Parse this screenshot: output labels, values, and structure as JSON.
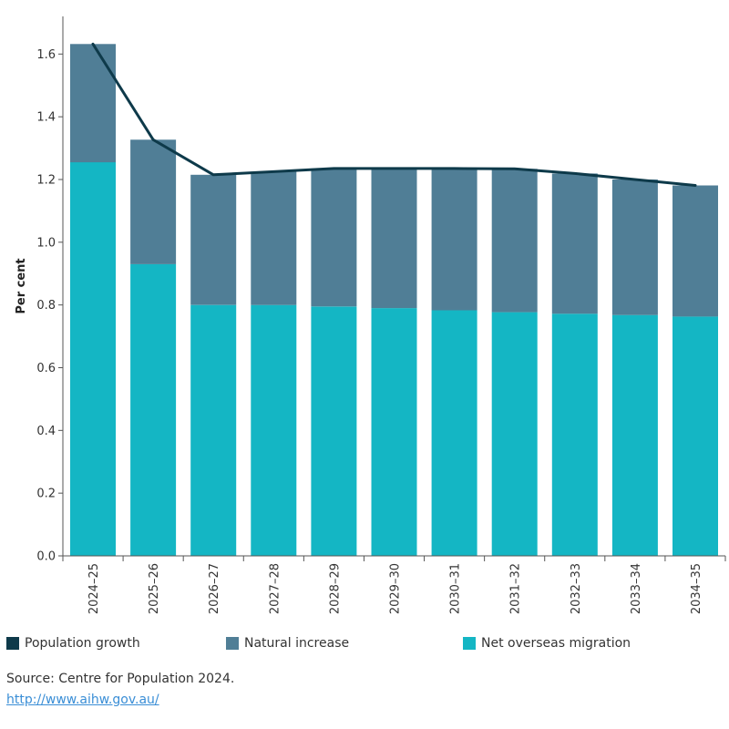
{
  "chart_data": {
    "type": "bar",
    "stacked": true,
    "ylabel": "Per cent",
    "xlabel": "",
    "ylim": [
      0,
      1.72
    ],
    "yticks": [
      "0.0",
      "0.2",
      "0.4",
      "0.6",
      "0.8",
      "1.0",
      "1.2",
      "1.4",
      "1.6"
    ],
    "grid": false,
    "legend_position": "bottom",
    "categories": [
      "2024–25",
      "2025–26",
      "2026–27",
      "2027–28",
      "2028–29",
      "2029–30",
      "2030–31",
      "2031–32",
      "2032–33",
      "2033–34",
      "2034–35"
    ],
    "series": [
      {
        "name": "Net overseas migration",
        "type": "bar",
        "color": "#14b6c4",
        "values": [
          1.255,
          0.93,
          0.8,
          0.8,
          0.795,
          0.79,
          0.783,
          0.777,
          0.772,
          0.768,
          0.763
        ]
      },
      {
        "name": "Natural increase",
        "type": "bar",
        "color": "#507e96",
        "values": [
          0.377,
          0.397,
          0.415,
          0.425,
          0.44,
          0.445,
          0.452,
          0.457,
          0.447,
          0.432,
          0.418
        ]
      },
      {
        "name": "Population growth",
        "type": "line",
        "color": "#0e3a4a",
        "values": [
          1.632,
          1.327,
          1.215,
          1.225,
          1.235,
          1.235,
          1.235,
          1.234,
          1.219,
          1.2,
          1.181
        ]
      }
    ]
  },
  "legend": [
    {
      "label": "Population growth",
      "color": "#0e3a4a"
    },
    {
      "label": "Natural increase",
      "color": "#507e96"
    },
    {
      "label": "Net overseas migration",
      "color": "#14b6c4"
    }
  ],
  "source": {
    "text": "Source: Centre for Population 2024.",
    "link": "http://www.aihw.gov.au/"
  }
}
